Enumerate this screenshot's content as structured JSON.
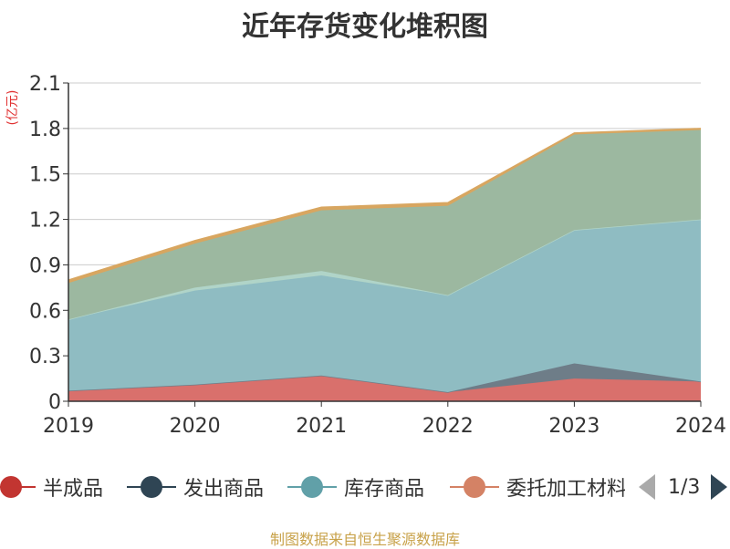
{
  "title": "近年存货变化堆积图",
  "unit_label": "(亿元)",
  "source": "制图数据来自恒生聚源数据库",
  "legend_page": "1/3",
  "colors": {
    "半成品": "#c23531",
    "发出商品": "#2f4554",
    "库存商品": "#61a0a8",
    "委托加工材料": "#d48265",
    "unit_label": "#e03030",
    "axis": "#333333",
    "grid": "#cccccc",
    "nav_active": "#2f4554",
    "nav_inactive": "#aaaaaa"
  },
  "chart_data": {
    "type": "area",
    "stacked": true,
    "title": "近年存货变化堆积图",
    "ylabel": "(亿元)",
    "categories": [
      "2019",
      "2020",
      "2021",
      "2022",
      "2023",
      "2024"
    ],
    "ylim": [
      0,
      2.1
    ],
    "yticks": [
      0,
      0.3,
      0.6,
      0.9,
      1.2,
      1.5,
      1.8,
      2.1
    ],
    "ytick_labels": [
      "0",
      "0.3",
      "0.6",
      "0.9",
      "1.2",
      "1.5",
      "1.8",
      "2.1"
    ],
    "grid": true,
    "legend_position": "bottom",
    "series": [
      {
        "name": "半成品",
        "color": "#d9706c",
        "values": [
          0.07,
          0.11,
          0.17,
          0.06,
          0.15,
          0.13
        ]
      },
      {
        "name": "发出商品",
        "color": "#6e7d88",
        "values": [
          0.0,
          0.0,
          0.0,
          0.0,
          0.1,
          0.0
        ]
      },
      {
        "name": "库存商品",
        "color": "#8fbcc2",
        "values": [
          0.47,
          0.62,
          0.66,
          0.64,
          0.88,
          1.07
        ]
      },
      {
        "name": "委托加工材料",
        "color": "#b0d4c8",
        "values": [
          0.0,
          0.02,
          0.03,
          0.0,
          0.0,
          0.0
        ]
      },
      {
        "name": "",
        "color": "#9cb8a0",
        "values": [
          0.24,
          0.29,
          0.4,
          0.59,
          0.63,
          0.59
        ]
      },
      {
        "name": "",
        "color": "#d8a660",
        "values": [
          0.02,
          0.02,
          0.02,
          0.02,
          0.01,
          0.01
        ]
      }
    ]
  },
  "legend": [
    {
      "label": "半成品",
      "color": "#c23531"
    },
    {
      "label": "发出商品",
      "color": "#2f4554"
    },
    {
      "label": "库存商品",
      "color": "#61a0a8"
    },
    {
      "label": "委托加工材料",
      "color": "#d48265"
    }
  ]
}
